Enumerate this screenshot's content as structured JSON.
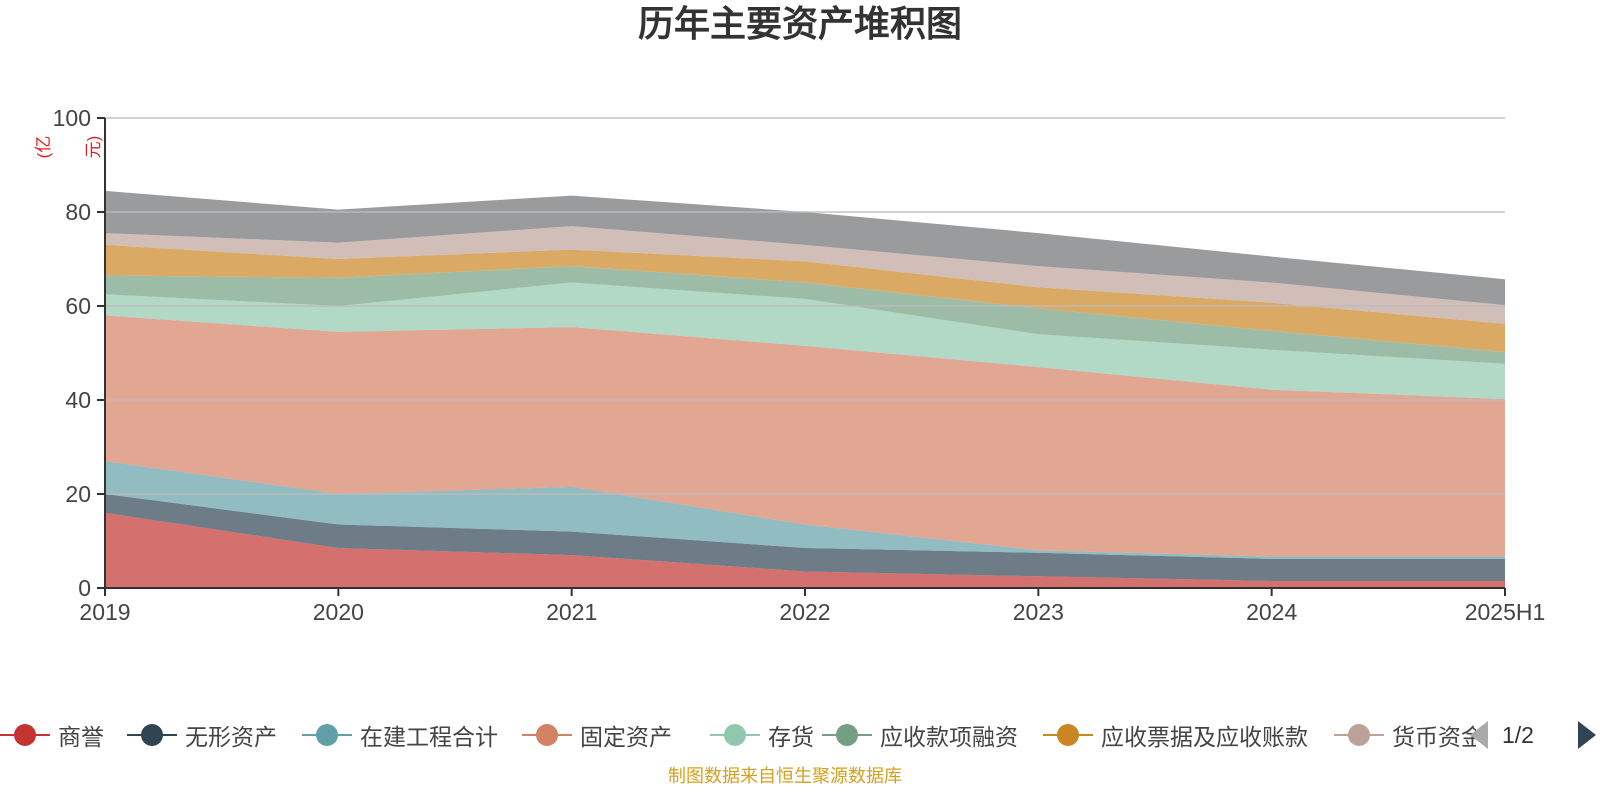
{
  "chart_data": {
    "type": "area",
    "stacked": true,
    "title": "历年主要资产堆积图",
    "unit": "(亿元)",
    "categories": [
      "2019",
      "2020",
      "2021",
      "2022",
      "2023",
      "2024",
      "2025H1"
    ],
    "ylim": [
      0,
      100
    ],
    "yticks": [
      0,
      20,
      40,
      60,
      80,
      100
    ],
    "grid": true,
    "legend_position": "bottom",
    "series": [
      {
        "name": "商誉",
        "color": "#c23531",
        "values": [
          16,
          8.5,
          7,
          3.5,
          2.5,
          1.5,
          1.5
        ]
      },
      {
        "name": "无形资产",
        "color": "#2f4554",
        "values": [
          4,
          5,
          5,
          5,
          5,
          4.7,
          4.7
        ]
      },
      {
        "name": "在建工程合计",
        "color": "#61a0a8",
        "values": [
          7,
          6.5,
          9.5,
          5,
          0.5,
          0.5,
          0.5
        ]
      },
      {
        "name": "固定资产",
        "color": "#d48265",
        "values": [
          31,
          34.5,
          34,
          38,
          39,
          35.5,
          33.5
        ]
      },
      {
        "name": "存货",
        "color": "#91c7ae",
        "values": [
          4.5,
          5.5,
          9.5,
          10,
          7,
          8.5,
          7.5
        ]
      },
      {
        "name": "应收款项融资",
        "color": "#749f83",
        "values": [
          4,
          6,
          3.5,
          3.5,
          5.5,
          4,
          2.5
        ]
      },
      {
        "name": "应收票据及应收账款",
        "color": "#ca8622",
        "values": [
          6.5,
          4,
          3.5,
          4.5,
          4.5,
          6,
          6
        ]
      },
      {
        "name": "货币资金",
        "color": "#bda29a",
        "values": [
          2.5,
          3.5,
          5,
          3.5,
          4.5,
          4.3,
          4
        ]
      },
      {
        "name": "",
        "color": "#6e7074",
        "values": [
          9,
          7,
          6.5,
          7,
          7,
          5.5,
          5.5
        ]
      }
    ]
  },
  "legend": {
    "items": [
      {
        "label": "商誉",
        "color": "#c23531"
      },
      {
        "label": "无形资产",
        "color": "#2f4554"
      },
      {
        "label": "在建工程合计",
        "color": "#61a0a8"
      },
      {
        "label": "固定资产",
        "color": "#d48265"
      },
      {
        "label": "存货",
        "color": "#91c7ae"
      },
      {
        "label": "应收款项融资",
        "color": "#749f83"
      },
      {
        "label": "应收票据及应收账款",
        "color": "#ca8622"
      },
      {
        "label": "货币资金",
        "color": "#bda29a"
      }
    ],
    "page_text": "1/2",
    "prev_icon": "triangle-left-icon",
    "next_icon": "triangle-right-icon"
  },
  "source_text": "制图数据来自恒生聚源数据库"
}
